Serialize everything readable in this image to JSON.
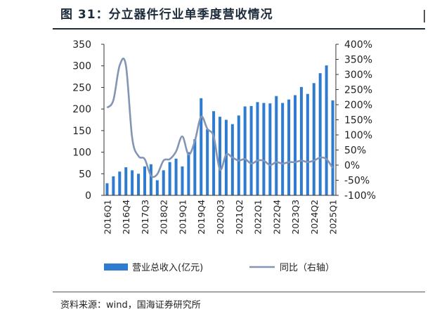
{
  "figure": {
    "title": "图 31：分立器件行业单季度营收情况",
    "source": "资料来源：wind，国海证券研究所"
  },
  "chart_data": {
    "type": "bar",
    "title": "图 31：分立器件行业单季度营收情况",
    "xlabel": "",
    "ylabel": "",
    "categories": [
      "2016Q1",
      "2016Q2",
      "2016Q3",
      "2016Q4",
      "2017Q1",
      "2017Q2",
      "2017Q3",
      "2017Q4",
      "2018Q1",
      "2018Q2",
      "2018Q3",
      "2018Q4",
      "2019Q1",
      "2019Q2",
      "2019Q3",
      "2019Q4",
      "2020Q1",
      "2020Q2",
      "2020Q3",
      "2020Q4",
      "2021Q1",
      "2021Q2",
      "2021Q3",
      "2021Q4",
      "2022Q1",
      "2022Q2",
      "2022Q3",
      "2022Q4",
      "2023Q1",
      "2023Q2",
      "2023Q3",
      "2023Q4",
      "2024Q1",
      "2024Q2",
      "2024Q3",
      "2024Q4",
      "2025Q1"
    ],
    "tick_labels": [
      "2016Q1",
      "2016Q4",
      "2017Q3",
      "2018Q2",
      "2019Q1",
      "2019Q4",
      "2020Q3",
      "2021Q2",
      "2022Q1",
      "2022Q4",
      "2023Q3",
      "2024Q2",
      "2025Q1"
    ],
    "ylim": [
      0,
      350
    ],
    "y_ticks": [
      "0",
      "50",
      "100",
      "150",
      "200",
      "250",
      "300",
      "350"
    ],
    "y2lim": [
      -100,
      400
    ],
    "y2_ticks": [
      "-100%",
      "-50%",
      "0%",
      "50%",
      "100%",
      "150%",
      "200%",
      "250%",
      "300%",
      "350%",
      "400%"
    ],
    "grid": false,
    "legend": "bottom",
    "series": [
      {
        "name": "营业总收入(亿元)",
        "type": "bar",
        "axis": "left",
        "color": "#2e7bd0",
        "values": [
          28,
          44,
          55,
          65,
          58,
          50,
          67,
          72,
          35,
          58,
          77,
          85,
          67,
          100,
          130,
          225,
          153,
          195,
          182,
          175,
          165,
          185,
          206,
          207,
          216,
          214,
          213,
          230,
          214,
          222,
          232,
          251,
          235,
          260,
          283,
          301,
          220
        ]
      },
      {
        "name": "同比（右轴）",
        "type": "line",
        "axis": "right",
        "color": "#8394b5",
        "values": [
          190,
          215,
          330,
          330,
          90,
          30,
          20,
          -35,
          -30,
          15,
          20,
          45,
          95,
          35,
          80,
          160,
          120,
          95,
          -15,
          35,
          25,
          15,
          20,
          5,
          15,
          15,
          0,
          10,
          5,
          10,
          10,
          15,
          10,
          15,
          25,
          20,
          -10
        ]
      }
    ]
  }
}
